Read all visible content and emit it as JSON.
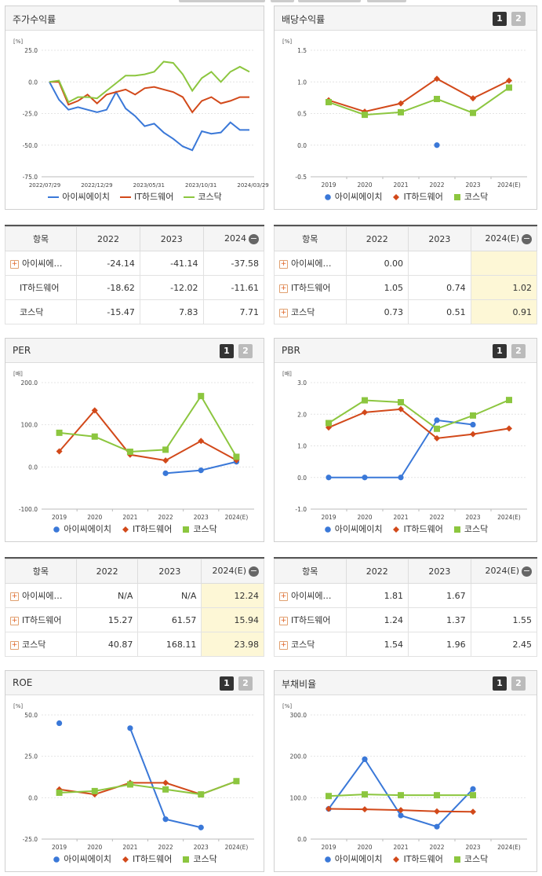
{
  "series_names": [
    "아이씨에이치",
    "IT하드웨어",
    "코스닥"
  ],
  "colors": {
    "s0": "#3a78d8",
    "s1": "#d2491a",
    "s2": "#8cc63f"
  },
  "panels": {
    "stock": {
      "title": "주가수익률"
    },
    "dividend": {
      "title": "배당수익률"
    },
    "per": {
      "title": "PER"
    },
    "pbr": {
      "title": "PBR"
    },
    "roe": {
      "title": "ROE"
    },
    "debt": {
      "title": "부채비율"
    }
  },
  "pager": {
    "p1": "1",
    "p2": "2"
  },
  "chart_data": [
    {
      "id": "stock",
      "type": "line",
      "title": "주가수익률",
      "ylabel": "[%]",
      "ylim": [
        -75,
        25
      ],
      "yticks": [
        "25.0",
        "0.0",
        "-25.0",
        "-50.0",
        "-75.0"
      ],
      "xtick_labels": [
        "2022/07/29",
        "2022/12/29",
        "2023/05/31",
        "2023/10/31",
        "2024/03/29"
      ],
      "markers": false,
      "series": [
        {
          "name": "아이씨에이치",
          "values": [
            0,
            -14,
            -22,
            -20,
            -22,
            -24,
            -22,
            -8,
            -21,
            -27,
            -35,
            -33,
            -40,
            -45,
            -51,
            -54,
            -39,
            -41,
            -40,
            -32,
            -38,
            -38
          ]
        },
        {
          "name": "IT하드웨어",
          "values": [
            0,
            0,
            -18,
            -15,
            -10,
            -17,
            -10,
            -8,
            -6,
            -10,
            -5,
            -4,
            -6,
            -8,
            -12,
            -24,
            -15,
            -12,
            -17,
            -15,
            -12,
            -12
          ]
        },
        {
          "name": "코스닥",
          "values": [
            0,
            1,
            -16,
            -12,
            -12,
            -13,
            -7,
            -1,
            5,
            5,
            6,
            8,
            16,
            15,
            6,
            -7,
            3,
            8,
            0,
            8,
            12,
            8
          ]
        }
      ]
    },
    {
      "id": "dividend",
      "type": "line",
      "title": "배당수익률",
      "ylabel": "[%]",
      "ylim": [
        -0.5,
        1.5
      ],
      "yticks": [
        "1.5",
        "1.0",
        "0.5",
        "0.0",
        "-0.5"
      ],
      "categories": [
        "2019",
        "2020",
        "2021",
        "2022",
        "2023",
        "2024(E)"
      ],
      "markers": true,
      "series": [
        {
          "name": "아이씨에이치",
          "values": [
            null,
            null,
            null,
            0.0,
            null,
            null
          ]
        },
        {
          "name": "IT하드웨어",
          "values": [
            0.71,
            0.53,
            0.66,
            1.05,
            0.74,
            1.02
          ]
        },
        {
          "name": "코스닥",
          "values": [
            0.68,
            0.48,
            0.52,
            0.73,
            0.51,
            0.91
          ]
        }
      ]
    },
    {
      "id": "per",
      "type": "line",
      "title": "PER",
      "ylabel": "[배]",
      "ylim": [
        -100,
        200
      ],
      "yticks": [
        "200.0",
        "100.0",
        "0.0",
        "-100.0"
      ],
      "categories": [
        "2019",
        "2020",
        "2021",
        "2022",
        "2023",
        "2024(E)"
      ],
      "markers": true,
      "series": [
        {
          "name": "아이씨에이치",
          "values": [
            null,
            null,
            null,
            -15,
            -8,
            12.24
          ]
        },
        {
          "name": "IT하드웨어",
          "values": [
            37,
            134,
            29,
            15.27,
            61.57,
            15.94
          ]
        },
        {
          "name": "코스닥",
          "values": [
            81,
            72,
            36,
            40.87,
            168.11,
            23.98
          ]
        }
      ]
    },
    {
      "id": "pbr",
      "type": "line",
      "title": "PBR",
      "ylabel": "[배]",
      "ylim": [
        -1,
        3
      ],
      "yticks": [
        "3.0",
        "2.0",
        "1.0",
        "0.0",
        "-1.0"
      ],
      "categories": [
        "2019",
        "2020",
        "2021",
        "2022",
        "2023",
        "2024(E)"
      ],
      "markers": true,
      "series": [
        {
          "name": "아이씨에이치",
          "values": [
            0,
            0,
            0,
            1.81,
            1.67,
            null
          ]
        },
        {
          "name": "IT하드웨어",
          "values": [
            1.58,
            2.06,
            2.16,
            1.24,
            1.37,
            1.55
          ]
        },
        {
          "name": "코스닥",
          "values": [
            1.72,
            2.44,
            2.38,
            1.54,
            1.96,
            2.45
          ]
        }
      ]
    },
    {
      "id": "roe",
      "type": "line",
      "title": "ROE",
      "ylabel": "[%]",
      "ylim": [
        -25,
        50
      ],
      "yticks": [
        "50.0",
        "25.0",
        "0.0",
        "-25.0"
      ],
      "categories": [
        "2019",
        "2020",
        "2021",
        "2022",
        "2023",
        "2024(E)"
      ],
      "markers": true,
      "series": [
        {
          "name": "아이씨에이치",
          "values": [
            45,
            null,
            42,
            -13,
            -18,
            null
          ]
        },
        {
          "name": "IT하드웨어",
          "values": [
            5,
            2,
            9,
            9,
            2,
            10
          ]
        },
        {
          "name": "코스닥",
          "values": [
            3,
            4,
            8,
            5,
            2,
            10
          ]
        }
      ]
    },
    {
      "id": "debt",
      "type": "line",
      "title": "부채비율",
      "ylabel": "[%]",
      "ylim": [
        0,
        300
      ],
      "yticks": [
        "300.0",
        "200.0",
        "100.0",
        "0.0"
      ],
      "categories": [
        "2019",
        "2020",
        "2021",
        "2022",
        "2023",
        "2024(E)"
      ],
      "markers": true,
      "series": [
        {
          "name": "아이씨에이치",
          "values": [
            73,
            193,
            57,
            30,
            121,
            null
          ]
        },
        {
          "name": "IT하드웨어",
          "values": [
            73,
            72,
            70,
            67,
            66,
            null
          ]
        },
        {
          "name": "코스닥",
          "values": [
            104,
            108,
            106,
            106,
            106,
            null
          ]
        }
      ]
    }
  ],
  "tables": {
    "stock": {
      "headers": [
        "항목",
        "2022",
        "2023",
        "2024"
      ],
      "rows": [
        {
          "name": "아이씨에…",
          "plus": true,
          "v": [
            "-24.14",
            "-41.14",
            "-37.58"
          ]
        },
        {
          "name": "IT하드웨어",
          "plus": false,
          "v": [
            "-18.62",
            "-12.02",
            "-11.61"
          ]
        },
        {
          "name": "코스닥",
          "plus": false,
          "v": [
            "-15.47",
            "7.83",
            "7.71"
          ]
        }
      ]
    },
    "dividend": {
      "headers": [
        "항목",
        "2022",
        "2023",
        "2024(E)"
      ],
      "rows": [
        {
          "name": "아이씨에…",
          "plus": true,
          "v": [
            "0.00",
            "",
            ""
          ]
        },
        {
          "name": "IT하드웨어",
          "plus": true,
          "v": [
            "1.05",
            "0.74",
            "1.02"
          ]
        },
        {
          "name": "코스닥",
          "plus": true,
          "v": [
            "0.73",
            "0.51",
            "0.91"
          ]
        }
      ]
    },
    "per": {
      "headers": [
        "항목",
        "2022",
        "2023",
        "2024(E)"
      ],
      "rows": [
        {
          "name": "아이씨에…",
          "plus": true,
          "v": [
            "N/A",
            "N/A",
            "12.24"
          ]
        },
        {
          "name": "IT하드웨어",
          "plus": true,
          "v": [
            "15.27",
            "61.57",
            "15.94"
          ]
        },
        {
          "name": "코스닥",
          "plus": true,
          "v": [
            "40.87",
            "168.11",
            "23.98"
          ]
        }
      ]
    },
    "pbr": {
      "headers": [
        "항목",
        "2022",
        "2023",
        "2024(E)"
      ],
      "rows": [
        {
          "name": "아이씨에…",
          "plus": true,
          "v": [
            "1.81",
            "1.67",
            ""
          ]
        },
        {
          "name": "IT하드웨어",
          "plus": true,
          "v": [
            "1.24",
            "1.37",
            "1.55"
          ]
        },
        {
          "name": "코스닥",
          "plus": true,
          "v": [
            "1.54",
            "1.96",
            "2.45"
          ]
        }
      ]
    }
  }
}
